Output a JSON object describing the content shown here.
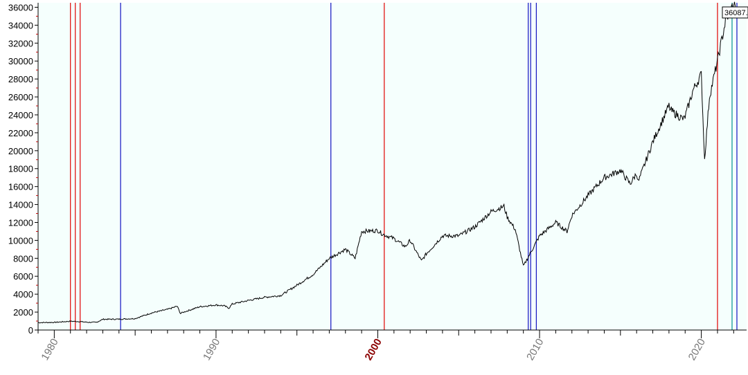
{
  "chart_data": {
    "type": "line",
    "title": "",
    "xlabel": "",
    "ylabel": "",
    "xlim": [
      1979.0,
      2022.8
    ],
    "ylim": [
      0,
      36500
    ],
    "yticks": [
      0,
      2000,
      4000,
      6000,
      8000,
      10000,
      12000,
      14000,
      16000,
      18000,
      20000,
      22000,
      24000,
      26000,
      28000,
      30000,
      32000,
      34000,
      36000
    ],
    "ytick_labels": [
      "0",
      "2000",
      "4000",
      "6000",
      "8000",
      "10000",
      "12000",
      "14000",
      "16000",
      "18000",
      "20000",
      "22000",
      "24000",
      "26000",
      "28000",
      "30000",
      "32000",
      "34000",
      "36000"
    ],
    "xticks": [
      1980,
      1990,
      2000,
      2010,
      2020
    ],
    "xtick_labels": [
      "1980",
      "1990",
      "2000",
      "2010",
      "2020"
    ],
    "highlighted_xtick": "2000",
    "grid": false,
    "background": "#f5fffd",
    "last_value_label": "36087.",
    "series": [
      {
        "color": "#000000",
        "x": [
          1979.0,
          1980.0,
          1981.0,
          1981.5,
          1982.0,
          1982.6,
          1983.0,
          1984.0,
          1985.0,
          1986.0,
          1987.0,
          1987.6,
          1987.8,
          1988.0,
          1989.0,
          1990.0,
          1990.5,
          1990.8,
          1991.0,
          1992.0,
          1993.0,
          1994.0,
          1995.0,
          1996.0,
          1997.0,
          1998.0,
          1998.6,
          1999.0,
          2000.0,
          2000.3,
          2001.0,
          2001.7,
          2002.0,
          2002.7,
          2003.0,
          2004.0,
          2005.0,
          2006.0,
          2007.0,
          2007.8,
          2008.0,
          2008.5,
          2009.0,
          2009.2,
          2010.0,
          2011.0,
          2011.7,
          2012.0,
          2013.0,
          2014.0,
          2015.0,
          2015.6,
          2016.0,
          2016.1,
          2017.0,
          2018.0,
          2018.1,
          2018.9,
          2019.0,
          2019.5,
          2020.0,
          2020.2,
          2020.5,
          2021.0,
          2021.5,
          2022.0,
          2022.1
        ],
        "values": [
          830,
          850,
          980,
          950,
          870,
          850,
          1200,
          1210,
          1280,
          1900,
          2300,
          2650,
          1850,
          2000,
          2600,
          2800,
          2700,
          2450,
          2900,
          3300,
          3650,
          3850,
          5000,
          6200,
          8000,
          9000,
          8000,
          11000,
          11100,
          10700,
          10200,
          9300,
          10000,
          7700,
          8500,
          10500,
          10500,
          11500,
          13200,
          13800,
          12600,
          11200,
          7100,
          7800,
          10500,
          12000,
          11000,
          12800,
          15000,
          17000,
          17800,
          16300,
          17500,
          16500,
          21000,
          25000,
          24500,
          23500,
          23800,
          26800,
          28500,
          19000,
          26000,
          30000,
          34500,
          36300,
          36087
        ]
      }
    ],
    "vlines_red": [
      1981.0,
      1981.3,
      1981.6,
      2000.4,
      2021.0
    ],
    "vlines_blue": [
      1984.1,
      1997.1,
      2009.3,
      2009.45,
      2009.8,
      2022.2
    ],
    "vlines_teal": [
      2021.9
    ]
  }
}
